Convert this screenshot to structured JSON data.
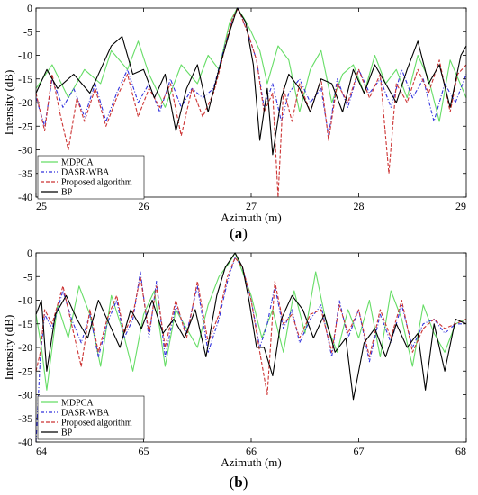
{
  "panels": [
    {
      "caption_open": "(",
      "caption_letter": "a",
      "caption_close": ")"
    },
    {
      "caption_open": "(",
      "caption_letter": "b",
      "caption_close": ")"
    }
  ],
  "chart_data": [
    {
      "type": "line",
      "xlabel": "Azimuth (m)",
      "ylabel": "Intensity (dB)",
      "xlim": [
        25,
        29
      ],
      "ylim": [
        -40,
        0
      ],
      "xticks": [
        25,
        26,
        27,
        28,
        29
      ],
      "yticks": [
        0,
        -5,
        -10,
        -15,
        -20,
        -25,
        -30,
        -35,
        -40
      ],
      "legend_position": "bottom-left",
      "series": [
        {
          "name": "MDPCA",
          "color": "#66dd66",
          "dash": "solid",
          "x": [
            25.0,
            25.15,
            25.3,
            25.45,
            25.6,
            25.7,
            25.85,
            25.95,
            26.05,
            26.2,
            26.35,
            26.5,
            26.6,
            26.7,
            26.8,
            26.87,
            26.93,
            27.0,
            27.08,
            27.15,
            27.25,
            27.35,
            27.45,
            27.55,
            27.65,
            27.75,
            27.85,
            27.95,
            28.05,
            28.15,
            28.25,
            28.35,
            28.45,
            28.55,
            28.65,
            28.75,
            28.85,
            29.0
          ],
          "y": [
            -17,
            -12,
            -19,
            -13,
            -16,
            -9,
            -13,
            -7,
            -14,
            -21,
            -12,
            -16,
            -10,
            -13,
            -3,
            0,
            -2,
            -5,
            -9,
            -16,
            -8,
            -11,
            -22,
            -13,
            -9,
            -20,
            -14,
            -12,
            -18,
            -10,
            -16,
            -13,
            -19,
            -10,
            -15,
            -24,
            -11,
            -19
          ]
        },
        {
          "name": "DASR-WBA",
          "color": "#3333dd",
          "dash": "dash-dot",
          "x": [
            25.0,
            25.08,
            25.15,
            25.25,
            25.35,
            25.45,
            25.55,
            25.65,
            25.75,
            25.85,
            25.95,
            26.05,
            26.15,
            26.25,
            26.35,
            26.45,
            26.55,
            26.65,
            26.72,
            26.78,
            26.83,
            26.88,
            26.93,
            26.98,
            27.05,
            27.12,
            27.2,
            27.28,
            27.35,
            27.45,
            27.55,
            27.65,
            27.72,
            27.8,
            27.9,
            28.0,
            28.1,
            28.2,
            28.3,
            28.4,
            28.5,
            28.6,
            28.7,
            28.8,
            28.9,
            29.0
          ],
          "y": [
            -19,
            -25,
            -15,
            -21,
            -17,
            -23,
            -16,
            -24,
            -18,
            -13,
            -20,
            -16,
            -22,
            -15,
            -21,
            -17,
            -19,
            -17,
            -11,
            -6,
            -2,
            0,
            -3,
            -6,
            -11,
            -21,
            -16,
            -24,
            -18,
            -15,
            -20,
            -17,
            -27,
            -15,
            -21,
            -13,
            -18,
            -15,
            -21,
            -13,
            -19,
            -15,
            -24,
            -16,
            -20,
            -14
          ]
        },
        {
          "name": "Proposed algorithm",
          "color": "#cc3333",
          "dash": "dash",
          "x": [
            25.0,
            25.08,
            25.15,
            25.22,
            25.3,
            25.38,
            25.45,
            25.55,
            25.65,
            25.75,
            25.85,
            25.95,
            26.05,
            26.15,
            26.25,
            26.35,
            26.45,
            26.55,
            26.65,
            26.72,
            26.78,
            26.83,
            26.88,
            26.93,
            26.98,
            27.05,
            27.12,
            27.2,
            27.25,
            27.3,
            27.38,
            27.45,
            27.55,
            27.65,
            27.72,
            27.8,
            27.9,
            28.0,
            28.1,
            28.2,
            28.28,
            28.35,
            28.45,
            28.55,
            28.65,
            28.75,
            28.85,
            28.92,
            29.0
          ],
          "y": [
            -18,
            -26,
            -14,
            -22,
            -30,
            -19,
            -24,
            -17,
            -25,
            -19,
            -14,
            -23,
            -17,
            -21,
            -16,
            -27,
            -17,
            -23,
            -18,
            -12,
            -6,
            -2,
            0,
            -3,
            -6,
            -11,
            -22,
            -18,
            -40,
            -17,
            -24,
            -16,
            -22,
            -15,
            -28,
            -16,
            -20,
            -13,
            -19,
            -14,
            -35,
            -16,
            -20,
            -13,
            -18,
            -11,
            -22,
            -14,
            -12
          ]
        },
        {
          "name": "BP",
          "color": "#000000",
          "dash": "solid",
          "x": [
            25.0,
            25.1,
            25.2,
            25.35,
            25.5,
            25.6,
            25.7,
            25.8,
            25.9,
            26.0,
            26.1,
            26.2,
            26.3,
            26.4,
            26.5,
            26.6,
            26.7,
            26.8,
            26.87,
            26.95,
            27.02,
            27.08,
            27.15,
            27.2,
            27.28,
            27.35,
            27.45,
            27.55,
            27.65,
            27.75,
            27.85,
            27.95,
            28.05,
            28.15,
            28.25,
            28.35,
            28.45,
            28.55,
            28.65,
            28.75,
            28.85,
            28.95,
            29.0
          ],
          "y": [
            -18,
            -13,
            -17,
            -14,
            -18,
            -13,
            -8,
            -6,
            -14,
            -13,
            -19,
            -14,
            -26,
            -17,
            -12,
            -22,
            -13,
            -5,
            0,
            -3,
            -12,
            -28,
            -17,
            -31,
            -19,
            -14,
            -17,
            -22,
            -15,
            -16,
            -22,
            -13,
            -18,
            -12,
            -16,
            -20,
            -13,
            -7,
            -16,
            -12,
            -21,
            -10,
            -8
          ]
        }
      ]
    },
    {
      "type": "line",
      "xlabel": "Azimuth (m)",
      "ylabel": "Intensity (dB)",
      "xlim": [
        64,
        68
      ],
      "ylim": [
        -40,
        0
      ],
      "xticks": [
        64,
        65,
        66,
        67,
        68
      ],
      "yticks": [
        0,
        -5,
        -10,
        -15,
        -20,
        -25,
        -30,
        -35,
        -40
      ],
      "legend_position": "bottom-left",
      "series": [
        {
          "name": "MDPCA",
          "color": "#66dd66",
          "dash": "solid",
          "x": [
            64.0,
            64.05,
            64.1,
            64.2,
            64.3,
            64.4,
            64.5,
            64.6,
            64.7,
            64.8,
            64.9,
            65.0,
            65.1,
            65.2,
            65.3,
            65.4,
            65.5,
            65.6,
            65.7,
            65.8,
            65.85,
            65.92,
            66.0,
            66.1,
            66.2,
            66.3,
            66.4,
            66.5,
            66.6,
            66.7,
            66.8,
            66.9,
            67.0,
            67.1,
            67.2,
            67.3,
            67.4,
            67.5,
            67.6,
            67.7,
            67.8,
            67.9,
            68.0
          ],
          "y": [
            -13,
            -20,
            -29,
            -11,
            -18,
            -7,
            -13,
            -24,
            -9,
            -16,
            -25,
            -13,
            -8,
            -24,
            -12,
            -16,
            -20,
            -11,
            -5,
            -2,
            0,
            -4,
            -9,
            -18,
            -12,
            -21,
            -8,
            -17,
            -4,
            -15,
            -21,
            -12,
            -18,
            -10,
            -22,
            -8,
            -14,
            -24,
            -11,
            -17,
            -21,
            -15,
            -14
          ]
        },
        {
          "name": "DASR-WBA",
          "color": "#3333dd",
          "dash": "dash-dot",
          "x": [
            64.0,
            64.04,
            64.08,
            64.15,
            64.25,
            64.33,
            64.42,
            64.5,
            64.58,
            64.66,
            64.75,
            64.82,
            64.9,
            64.97,
            65.05,
            65.12,
            65.2,
            65.3,
            65.4,
            65.5,
            65.6,
            65.7,
            65.78,
            65.85,
            65.92,
            66.0,
            66.08,
            66.15,
            66.22,
            66.3,
            66.38,
            66.45,
            66.55,
            66.65,
            66.75,
            66.82,
            66.9,
            67.0,
            67.1,
            67.2,
            67.3,
            67.4,
            67.5,
            67.6,
            67.7,
            67.8,
            67.9,
            68.0
          ],
          "y": [
            -40,
            -22,
            -13,
            -16,
            -8,
            -14,
            -19,
            -13,
            -22,
            -15,
            -10,
            -18,
            -14,
            -4,
            -18,
            -6,
            -22,
            -11,
            -17,
            -7,
            -21,
            -14,
            -6,
            -1,
            -3,
            -10,
            -20,
            -15,
            -7,
            -16,
            -12,
            -19,
            -14,
            -11,
            -22,
            -10,
            -18,
            -12,
            -23,
            -13,
            -19,
            -11,
            -20,
            -15,
            -14,
            -17,
            -15,
            -15
          ]
        },
        {
          "name": "Proposed algorithm",
          "color": "#cc3333",
          "dash": "dash",
          "x": [
            64.0,
            64.04,
            64.08,
            64.15,
            64.25,
            64.33,
            64.42,
            64.5,
            64.58,
            64.66,
            64.75,
            64.82,
            64.9,
            64.97,
            65.05,
            65.12,
            65.2,
            65.3,
            65.4,
            65.5,
            65.6,
            65.7,
            65.78,
            65.85,
            65.92,
            66.0,
            66.08,
            66.15,
            66.22,
            66.3,
            66.38,
            66.45,
            66.55,
            66.65,
            66.75,
            66.82,
            66.9,
            67.0,
            67.1,
            67.2,
            67.3,
            67.4,
            67.5,
            67.6,
            67.7,
            67.8,
            67.9,
            68.0
          ],
          "y": [
            -25,
            -21,
            -12,
            -15,
            -7,
            -15,
            -24,
            -12,
            -21,
            -14,
            -9,
            -17,
            -13,
            -5,
            -17,
            -7,
            -20,
            -10,
            -18,
            -6,
            -19,
            -13,
            -5,
            -1,
            -3,
            -10,
            -21,
            -30,
            -6,
            -15,
            -13,
            -18,
            -13,
            -12,
            -21,
            -11,
            -17,
            -12,
            -22,
            -12,
            -18,
            -10,
            -21,
            -16,
            -14,
            -16,
            -15,
            -14
          ]
        },
        {
          "name": "BP",
          "color": "#000000",
          "dash": "solid",
          "x": [
            64.0,
            64.05,
            64.1,
            64.18,
            64.28,
            64.38,
            64.48,
            64.58,
            64.68,
            64.78,
            64.88,
            64.98,
            65.08,
            65.18,
            65.28,
            65.38,
            65.48,
            65.58,
            65.68,
            65.76,
            65.85,
            65.92,
            65.98,
            66.05,
            66.12,
            66.2,
            66.28,
            66.38,
            66.48,
            66.58,
            66.68,
            66.78,
            66.88,
            66.95,
            67.05,
            67.15,
            67.25,
            67.35,
            67.45,
            67.55,
            67.62,
            67.7,
            67.8,
            67.9,
            68.0
          ],
          "y": [
            -13,
            -10,
            -25,
            -13,
            -9,
            -14,
            -18,
            -10,
            -15,
            -20,
            -12,
            -16,
            -10,
            -17,
            -14,
            -18,
            -12,
            -22,
            -9,
            -3,
            0,
            -3,
            -10,
            -20,
            -20,
            -26,
            -14,
            -9,
            -12,
            -18,
            -13,
            -21,
            -18,
            -31,
            -19,
            -16,
            -22,
            -15,
            -20,
            -17,
            -29,
            -15,
            -25,
            -14,
            -15
          ]
        }
      ]
    }
  ]
}
